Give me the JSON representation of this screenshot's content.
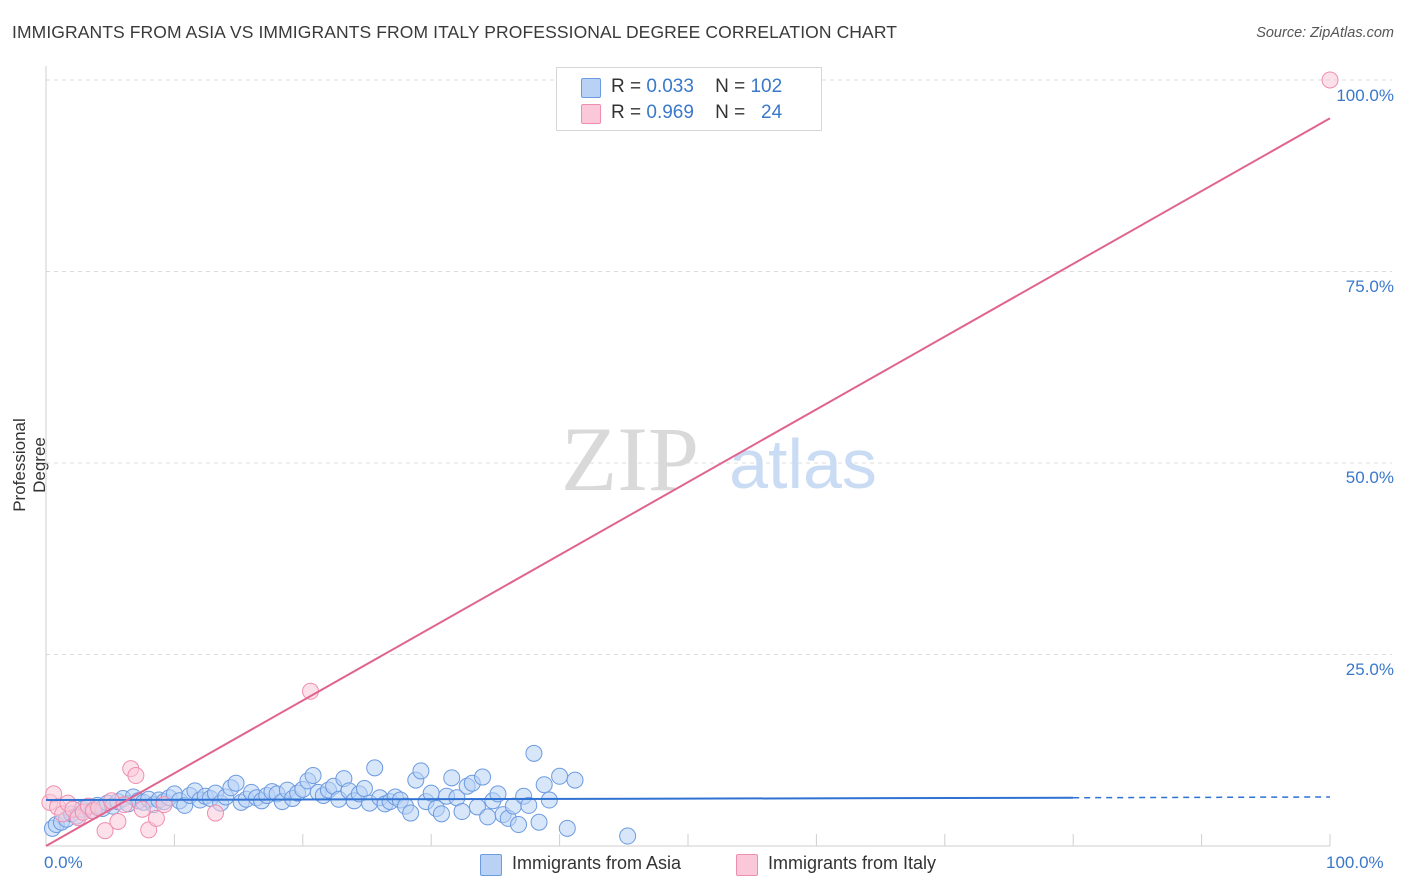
{
  "header": {
    "title": "IMMIGRANTS FROM ASIA VS IMMIGRANTS FROM ITALY PROFESSIONAL DEGREE CORRELATION CHART",
    "source": "Source: ZipAtlas.com"
  },
  "watermark": {
    "part1": "ZIP",
    "part2": "atlas"
  },
  "legend": {
    "rows": [
      {
        "r_label": "R =",
        "r_value": "0.033",
        "n_label": "N =",
        "n_value": "102"
      },
      {
        "r_label": "R =",
        "r_value": "0.969",
        "n_label": "N =",
        "n_value": "24"
      }
    ]
  },
  "chart_data": {
    "type": "scatter",
    "title": "IMMIGRANTS FROM ASIA VS IMMIGRANTS FROM ITALY PROFESSIONAL DEGREE CORRELATION CHART",
    "xlabel": "",
    "ylabel": "Professional Degree",
    "xlim": [
      0,
      100
    ],
    "ylim": [
      0,
      100
    ],
    "x_tick_labels": [
      "0.0%",
      "100.0%"
    ],
    "y_tick_labels": [
      "100.0%",
      "75.0%",
      "50.0%",
      "25.0%"
    ],
    "y_ticks": [
      100,
      75,
      50,
      25
    ],
    "grid": true,
    "legend_position": "top-center",
    "colors": {
      "asia": "#6c9be0",
      "asia_fill": "#b8d1f5",
      "italy": "#ee8fae",
      "italy_fill": "#fac8d8",
      "asia_line": "#2f72d2",
      "italy_line": "#e0648f"
    },
    "series": [
      {
        "name": "Immigrants from Asia",
        "r": 0.033,
        "n": 102,
        "trend": {
          "x0": 0,
          "y0": 6.0,
          "x1": 80,
          "y1": 6.3,
          "dashed_to_x": 100,
          "dashed_to_y": 6.4
        },
        "points": [
          [
            0.5,
            2.3
          ],
          [
            0.8,
            2.8
          ],
          [
            1.2,
            3.1
          ],
          [
            1.6,
            3.5
          ],
          [
            2.0,
            4.2
          ],
          [
            2.4,
            3.9
          ],
          [
            2.8,
            4.8
          ],
          [
            3.2,
            5.0
          ],
          [
            3.6,
            4.6
          ],
          [
            4.0,
            5.3
          ],
          [
            4.4,
            4.9
          ],
          [
            4.8,
            5.6
          ],
          [
            5.2,
            5.2
          ],
          [
            5.6,
            5.8
          ],
          [
            6.0,
            6.2
          ],
          [
            6.4,
            5.5
          ],
          [
            6.8,
            6.4
          ],
          [
            7.2,
            5.9
          ],
          [
            7.6,
            5.7
          ],
          [
            8.0,
            6.1
          ],
          [
            8.4,
            5.4
          ],
          [
            8.8,
            6.0
          ],
          [
            9.2,
            5.8
          ],
          [
            9.6,
            6.3
          ],
          [
            10.0,
            6.8
          ],
          [
            10.4,
            5.9
          ],
          [
            10.8,
            5.3
          ],
          [
            11.2,
            6.6
          ],
          [
            11.6,
            7.2
          ],
          [
            12.0,
            6.0
          ],
          [
            12.4,
            6.5
          ],
          [
            12.8,
            6.2
          ],
          [
            13.2,
            6.9
          ],
          [
            13.6,
            5.6
          ],
          [
            14.0,
            6.4
          ],
          [
            14.4,
            7.6
          ],
          [
            14.8,
            8.2
          ],
          [
            15.2,
            5.7
          ],
          [
            15.6,
            6.1
          ],
          [
            16.0,
            7.0
          ],
          [
            16.4,
            6.3
          ],
          [
            16.8,
            5.9
          ],
          [
            17.2,
            6.6
          ],
          [
            17.6,
            7.1
          ],
          [
            18.0,
            6.8
          ],
          [
            18.4,
            5.8
          ],
          [
            18.8,
            7.3
          ],
          [
            19.2,
            6.2
          ],
          [
            19.6,
            6.9
          ],
          [
            20.0,
            7.4
          ],
          [
            20.4,
            8.5
          ],
          [
            20.8,
            9.2
          ],
          [
            21.2,
            7.0
          ],
          [
            21.6,
            6.6
          ],
          [
            22.0,
            7.3
          ],
          [
            22.4,
            7.8
          ],
          [
            22.8,
            6.1
          ],
          [
            23.2,
            8.8
          ],
          [
            23.6,
            7.2
          ],
          [
            24.0,
            5.9
          ],
          [
            24.4,
            6.8
          ],
          [
            24.8,
            7.5
          ],
          [
            25.2,
            5.6
          ],
          [
            25.6,
            10.2
          ],
          [
            26.0,
            6.3
          ],
          [
            26.4,
            5.5
          ],
          [
            26.8,
            5.8
          ],
          [
            27.2,
            6.4
          ],
          [
            27.6,
            6.0
          ],
          [
            28.0,
            5.2
          ],
          [
            28.4,
            4.3
          ],
          [
            28.8,
            8.6
          ],
          [
            29.2,
            9.8
          ],
          [
            29.6,
            5.8
          ],
          [
            30.0,
            6.9
          ],
          [
            30.4,
            4.9
          ],
          [
            30.8,
            4.2
          ],
          [
            31.2,
            6.5
          ],
          [
            31.6,
            8.9
          ],
          [
            32.0,
            6.3
          ],
          [
            32.4,
            4.5
          ],
          [
            32.8,
            7.8
          ],
          [
            33.2,
            8.2
          ],
          [
            33.6,
            5.1
          ],
          [
            34.0,
            9.0
          ],
          [
            34.4,
            3.8
          ],
          [
            34.8,
            5.9
          ],
          [
            35.2,
            6.8
          ],
          [
            35.6,
            4.1
          ],
          [
            36.0,
            3.6
          ],
          [
            36.4,
            5.2
          ],
          [
            36.8,
            2.8
          ],
          [
            37.2,
            6.5
          ],
          [
            37.6,
            5.3
          ],
          [
            38.0,
            12.1
          ],
          [
            38.4,
            3.1
          ],
          [
            38.8,
            8.0
          ],
          [
            39.2,
            6.0
          ],
          [
            40.0,
            9.1
          ],
          [
            40.6,
            2.3
          ],
          [
            41.2,
            8.6
          ],
          [
            45.3,
            1.3
          ]
        ]
      },
      {
        "name": "Immigrants from Italy",
        "r": 0.969,
        "n": 24,
        "trend": {
          "x0": 0,
          "y0": 0.0,
          "x1": 100,
          "y1": 95.0
        },
        "points": [
          [
            0.3,
            5.7
          ],
          [
            0.6,
            6.8
          ],
          [
            0.9,
            5.1
          ],
          [
            1.3,
            4.2
          ],
          [
            1.7,
            5.6
          ],
          [
            2.1,
            4.8
          ],
          [
            2.5,
            3.7
          ],
          [
            2.9,
            4.4
          ],
          [
            3.3,
            5.2
          ],
          [
            3.7,
            4.6
          ],
          [
            4.1,
            5.0
          ],
          [
            4.6,
            2.0
          ],
          [
            5.1,
            5.9
          ],
          [
            5.6,
            3.2
          ],
          [
            6.1,
            5.4
          ],
          [
            6.6,
            10.1
          ],
          [
            7.0,
            9.2
          ],
          [
            7.5,
            4.8
          ],
          [
            8.0,
            2.1
          ],
          [
            8.6,
            3.6
          ],
          [
            9.2,
            5.4
          ],
          [
            13.2,
            4.3
          ],
          [
            20.6,
            20.2
          ],
          [
            100,
            100
          ]
        ]
      }
    ]
  },
  "bottom_legend": {
    "asia_label": "Immigrants from Asia",
    "italy_label": "Immigrants from Italy"
  }
}
